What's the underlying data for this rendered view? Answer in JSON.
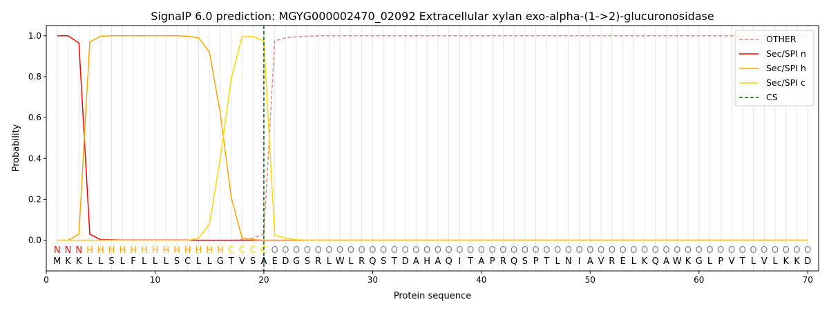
{
  "chart_data": {
    "type": "line",
    "title": "SignalP 6.0 prediction: MGYG000002470_02092 Extracellular xylan exo-alpha-(1->2)-glucuronosidase",
    "xlabel": "Protein sequence",
    "ylabel": "Probability",
    "xlim": [
      0,
      71
    ],
    "ylim": [
      -0.15,
      1.05
    ],
    "xticks": [
      0,
      10,
      20,
      30,
      40,
      50,
      60,
      70
    ],
    "yticks": [
      0.0,
      0.2,
      0.4,
      0.6,
      0.8,
      1.0
    ],
    "ytick_labels": [
      "0.0",
      "0.2",
      "0.4",
      "0.6",
      "0.8",
      "1.0"
    ],
    "legend_placement": "top-right",
    "sequence": "MKKLLSLFLLLSCLLGTVSAEDGSRLWLRQSTDAHAQITAPRQSPTLNIAVRELKQAWKGLPVTLVLKKD",
    "labels": "NNNHHHHHHHHHHHHHCCCCOOOOOOOOOOOOOOOOOOOOOOOOOOOOOOOOOOOOOOOOOOOOOOOOOO",
    "label_colors": {
      "N": "#ff0000",
      "H": "#ffa500",
      "C": "#ffd700",
      "O": "#808080"
    },
    "cs_position": 20,
    "series": [
      {
        "name": "OTHER",
        "color": "#f08080",
        "dash": true,
        "values": [
          0,
          0,
          0,
          0,
          0,
          0,
          0,
          0,
          0,
          0,
          0,
          0,
          0,
          0,
          0,
          0,
          0,
          0.003,
          0.01,
          0.03,
          0.975,
          0.99,
          0.995,
          0.998,
          1,
          1,
          1,
          1,
          1,
          1,
          1,
          1,
          1,
          1,
          1,
          1,
          1,
          1,
          1,
          1,
          1,
          1,
          1,
          1,
          1,
          1,
          1,
          1,
          1,
          1,
          1,
          1,
          1,
          1,
          1,
          1,
          1,
          1,
          1,
          1,
          1,
          1,
          1,
          1,
          1,
          1,
          1,
          1,
          1,
          1
        ]
      },
      {
        "name": "Sec/SPI n",
        "color": "#ff0000",
        "values": [
          1.0,
          1.0,
          0.965,
          0.03,
          0.003,
          0.002,
          0.001,
          0.001,
          0.001,
          0.001,
          0.001,
          0.001,
          0.001,
          0,
          0,
          0,
          0,
          0,
          0,
          0,
          0,
          0,
          0,
          0,
          0,
          0,
          0,
          0,
          0,
          0,
          0,
          0,
          0,
          0,
          0,
          0,
          0,
          0,
          0,
          0,
          0,
          0,
          0,
          0,
          0,
          0,
          0,
          0,
          0,
          0,
          0,
          0,
          0,
          0,
          0,
          0,
          0,
          0,
          0,
          0,
          0,
          0,
          0,
          0,
          0,
          0,
          0,
          0,
          0,
          0
        ]
      },
      {
        "name": "Sec/SPI h",
        "color": "#ffa500",
        "values": [
          0,
          0,
          0.03,
          0.97,
          0.998,
          1,
          1,
          1,
          1,
          1,
          1,
          1,
          0.998,
          0.99,
          0.92,
          0.62,
          0.21,
          0.01,
          0.003,
          0,
          0,
          0,
          0,
          0,
          0,
          0,
          0,
          0,
          0,
          0,
          0,
          0,
          0,
          0,
          0,
          0,
          0,
          0,
          0,
          0,
          0,
          0,
          0,
          0,
          0,
          0,
          0,
          0,
          0,
          0,
          0,
          0,
          0,
          0,
          0,
          0,
          0,
          0,
          0,
          0,
          0,
          0,
          0,
          0,
          0,
          0,
          0,
          0,
          0,
          0
        ]
      },
      {
        "name": "Sec/SPI c",
        "color": "#ffd700",
        "values": [
          0,
          0,
          0,
          0,
          0,
          0,
          0,
          0,
          0,
          0,
          0,
          0,
          0,
          0.01,
          0.08,
          0.4,
          0.79,
          0.995,
          0.997,
          0.975,
          0.025,
          0.01,
          0.003,
          0,
          0,
          0,
          0,
          0,
          0,
          0,
          0,
          0,
          0,
          0,
          0,
          0,
          0,
          0,
          0,
          0,
          0,
          0,
          0,
          0,
          0,
          0,
          0,
          0,
          0,
          0,
          0,
          0,
          0,
          0,
          0,
          0,
          0,
          0,
          0,
          0,
          0,
          0,
          0,
          0,
          0,
          0,
          0,
          0,
          0,
          0
        ]
      },
      {
        "name": "CS",
        "color": "#006400",
        "dash": true
      }
    ]
  }
}
